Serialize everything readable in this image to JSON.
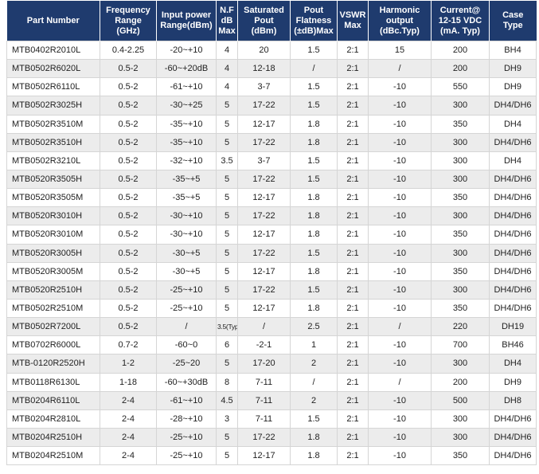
{
  "headers": [
    "Part Number",
    "Frequency\nRange\n(GHz)",
    "Input power\nRange(dBm)",
    "N.F\ndB\nMax",
    "Saturated\nPout\n(dBm)",
    "Pout\nFlatness\n(±dB)Max",
    "VSWR\nMax",
    "Harmonic\noutput\n(dBc.Typ)",
    "Current@\n12-15 VDC\n(mA. Typ)",
    "Case\nType"
  ],
  "rows": [
    [
      "MTB0402R2010L",
      "0.4-2.25",
      "-20~+10",
      "4",
      "20",
      "1.5",
      "2:1",
      "15",
      "200",
      "BH4"
    ],
    [
      "MTB0502R6020L",
      "0.5-2",
      "-60~+20dB",
      "4",
      "12-18",
      "/",
      "2:1",
      "/",
      "200",
      "DH9"
    ],
    [
      "MTB0502R6110L",
      "0.5-2",
      "-61~+10",
      "4",
      "3-7",
      "1.5",
      "2:1",
      "-10",
      "550",
      "DH9"
    ],
    [
      "MTB0502R3025H",
      "0.5-2",
      "-30~+25",
      "5",
      "17-22",
      "1.5",
      "2:1",
      "-10",
      "300",
      "DH4/DH6"
    ],
    [
      "MTB0502R3510M",
      "0.5-2",
      "-35~+10",
      "5",
      "12-17",
      "1.8",
      "2:1",
      "-10",
      "350",
      "DH4"
    ],
    [
      "MTB0502R3510H",
      "0.5-2",
      "-35~+10",
      "5",
      "17-22",
      "1.8",
      "2:1",
      "-10",
      "300",
      "DH4/DH6"
    ],
    [
      "MTB0502R3210L",
      "0.5-2",
      "-32~+10",
      "3.5",
      "3-7",
      "1.5",
      "2:1",
      "-10",
      "300",
      "DH4"
    ],
    [
      "MTB0520R3505H",
      "0.5-2",
      "-35~+5",
      "5",
      "17-22",
      "1.5",
      "2:1",
      "-10",
      "300",
      "DH4/DH6"
    ],
    [
      "MTB0520R3505M",
      "0.5-2",
      "-35~+5",
      "5",
      "12-17",
      "1.8",
      "2:1",
      "-10",
      "350",
      "DH4/DH6"
    ],
    [
      "MTB0520R3010H",
      "0.5-2",
      "-30~+10",
      "5",
      "17-22",
      "1.8",
      "2:1",
      "-10",
      "300",
      "DH4/DH6"
    ],
    [
      "MTB0520R3010M",
      "0.5-2",
      "-30~+10",
      "5",
      "12-17",
      "1.8",
      "2:1",
      "-10",
      "350",
      "DH4/DH6"
    ],
    [
      "MTB0520R3005H",
      "0.5-2",
      "-30~+5",
      "5",
      "17-22",
      "1.5",
      "2:1",
      "-10",
      "300",
      "DH4/DH6"
    ],
    [
      "MTB0520R3005M",
      "0.5-2",
      "-30~+5",
      "5",
      "12-17",
      "1.8",
      "2:1",
      "-10",
      "350",
      "DH4/DH6"
    ],
    [
      "MTB0520R2510H",
      "0.5-2",
      "-25~+10",
      "5",
      "17-22",
      "1.5",
      "2:1",
      "-10",
      "300",
      "DH4/DH6"
    ],
    [
      "MTB0502R2510M",
      "0.5-2",
      "-25~+10",
      "5",
      "12-17",
      "1.8",
      "2:1",
      "-10",
      "350",
      "DH4/DH6"
    ],
    [
      "MTB0502R7200L",
      "0.5-2",
      "/",
      "3.5(Typ.)",
      "/",
      "2.5",
      "2:1",
      "/",
      "220",
      "DH19"
    ],
    [
      "MTB0702R6000L",
      "0.7-2",
      "-60~0",
      "6",
      "-2-1",
      "1",
      "2:1",
      "-10",
      "700",
      "BH46"
    ],
    [
      "MTB-0120R2520H",
      "1-2",
      "-25~20",
      "5",
      "17-20",
      "2",
      "2:1",
      "-10",
      "300",
      "DH4"
    ],
    [
      "MTB0118R6130L",
      "1-18",
      "-60~+30dB",
      "8",
      "7-11",
      "/",
      "2:1",
      "/",
      "200",
      "DH9"
    ],
    [
      "MTB0204R6110L",
      "2-4",
      "-61~+10",
      "4.5",
      "7-11",
      "2",
      "2:1",
      "-10",
      "500",
      "DH8"
    ],
    [
      "MTB0204R2810L",
      "2-4",
      "-28~+10",
      "3",
      "7-11",
      "1.5",
      "2:1",
      "-10",
      "300",
      "DH4/DH6"
    ],
    [
      "MTB0204R2510H",
      "2-4",
      "-25~+10",
      "5",
      "17-22",
      "1.8",
      "2:1",
      "-10",
      "300",
      "DH4/DH6"
    ],
    [
      "MTB0204R2510M",
      "2-4",
      "-25~+10",
      "5",
      "12-17",
      "1.8",
      "2:1",
      "-10",
      "350",
      "DH4/DH6"
    ]
  ],
  "colors": {
    "header_bg": "#1f3b6e",
    "header_text": "#ffffff",
    "row_alt": "#ececec",
    "grid": "#d5d5d5"
  }
}
